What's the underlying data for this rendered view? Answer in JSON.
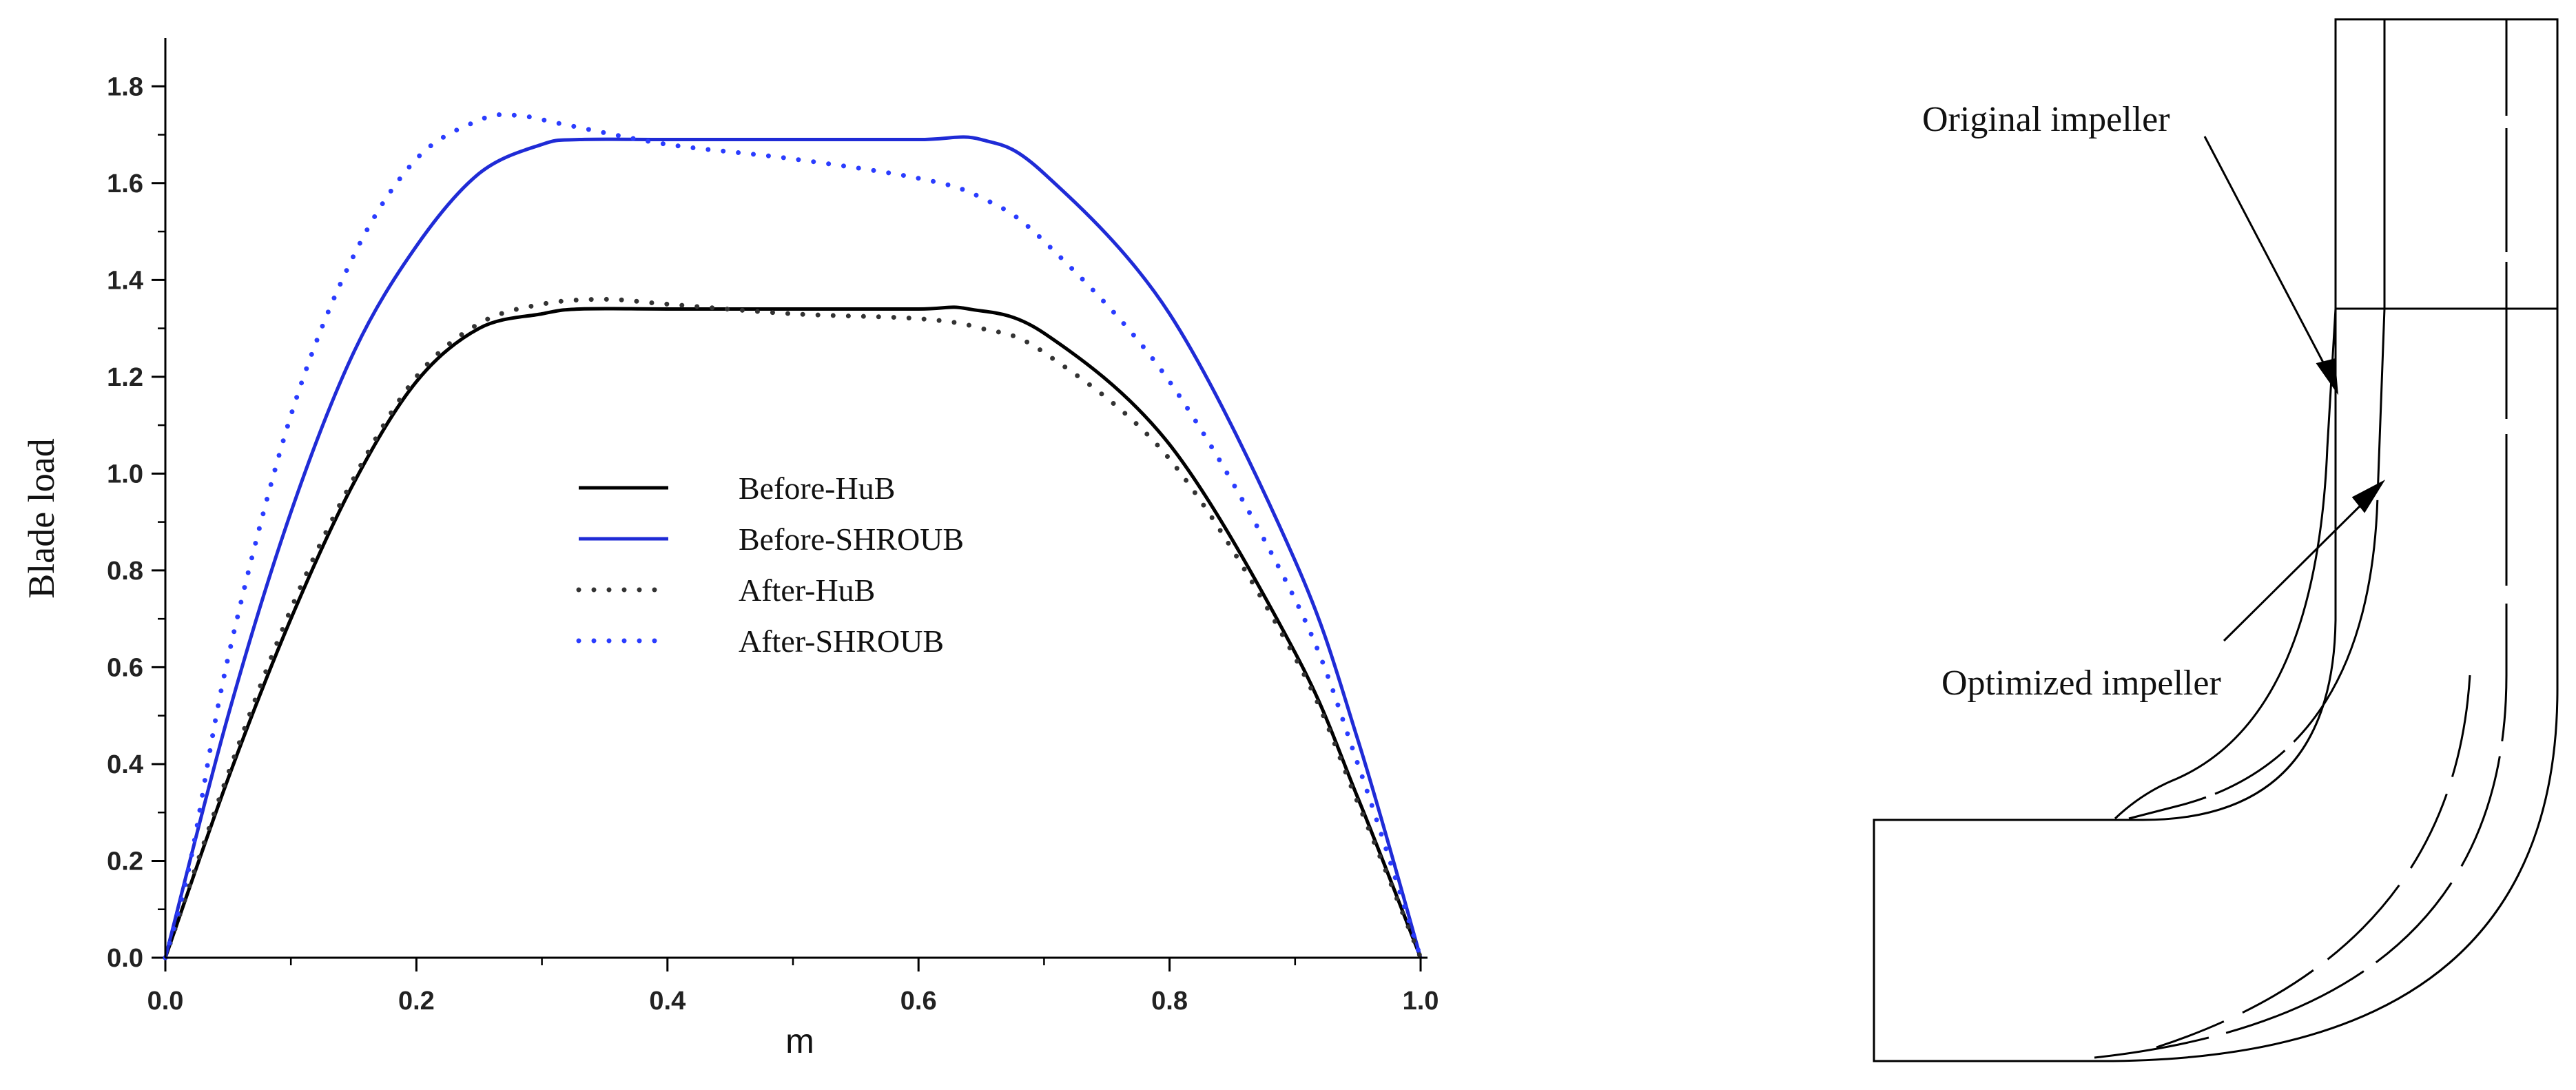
{
  "chart_data": {
    "type": "line",
    "xlabel": "m",
    "ylabel": "Blade load",
    "xlim": [
      0,
      1.0
    ],
    "ylim": [
      0,
      1.9
    ],
    "x_ticks": [
      "0.0",
      "0.2",
      "0.4",
      "0.6",
      "0.8",
      "1.0"
    ],
    "y_ticks": [
      "0.0",
      "0.2",
      "0.4",
      "0.6",
      "0.8",
      "1.0",
      "1.2",
      "1.4",
      "1.6",
      "1.8"
    ],
    "legend_position": "center",
    "series": [
      {
        "name": "Before-HuB",
        "color": "#000000",
        "style": "solid",
        "x": [
          0,
          0.05,
          0.1,
          0.15,
          0.2,
          0.25,
          0.3,
          0.33,
          0.4,
          0.5,
          0.6,
          0.64,
          0.7,
          0.8,
          0.9,
          0.95,
          1.0
        ],
        "y": [
          0,
          0.37,
          0.7,
          0.98,
          1.19,
          1.3,
          1.33,
          1.34,
          1.34,
          1.34,
          1.34,
          1.34,
          1.29,
          1.06,
          0.63,
          0.33,
          0
        ]
      },
      {
        "name": "Before-SHROUB",
        "color": "#1f2bd6",
        "style": "solid",
        "x": [
          0,
          0.05,
          0.1,
          0.15,
          0.2,
          0.25,
          0.3,
          0.33,
          0.4,
          0.5,
          0.6,
          0.65,
          0.7,
          0.8,
          0.9,
          0.95,
          1.0
        ],
        "y": [
          0,
          0.5,
          0.92,
          1.25,
          1.47,
          1.62,
          1.68,
          1.69,
          1.69,
          1.69,
          1.69,
          1.69,
          1.62,
          1.33,
          0.82,
          0.45,
          0
        ]
      },
      {
        "name": "After-HuB",
        "color": "#333333",
        "style": "dotted",
        "x": [
          0,
          0.05,
          0.1,
          0.15,
          0.2,
          0.25,
          0.3,
          0.35,
          0.4,
          0.5,
          0.6,
          0.65,
          0.7,
          0.8,
          0.9,
          0.95,
          1.0
        ],
        "y": [
          0,
          0.38,
          0.72,
          0.99,
          1.2,
          1.31,
          1.35,
          1.36,
          1.35,
          1.33,
          1.32,
          1.3,
          1.25,
          1.03,
          0.62,
          0.32,
          0
        ]
      },
      {
        "name": "After-SHROUB",
        "color": "#2a3cff",
        "style": "dotted",
        "x": [
          0,
          0.02,
          0.05,
          0.1,
          0.15,
          0.2,
          0.25,
          0.28,
          0.32,
          0.4,
          0.5,
          0.6,
          0.65,
          0.7,
          0.8,
          0.9,
          0.95,
          1.0
        ],
        "y": [
          0,
          0.2,
          0.62,
          1.12,
          1.45,
          1.65,
          1.73,
          1.74,
          1.72,
          1.68,
          1.65,
          1.61,
          1.57,
          1.48,
          1.19,
          0.74,
          0.4,
          0
        ]
      }
    ]
  },
  "diagram": {
    "labels": {
      "original": "Original impeller",
      "optimized": "Optimized impeller"
    }
  }
}
